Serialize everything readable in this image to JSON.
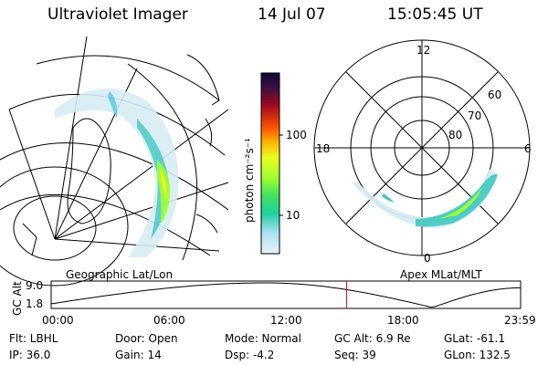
{
  "header": {
    "instrument": "Ultraviolet Imager",
    "date": "14 Jul 07",
    "time": "15:05:45 UT"
  },
  "left_panel": {
    "label": "Geographic Lat/Lon"
  },
  "right_panel": {
    "label": "Apex MLat/MLT",
    "mlt_labels": {
      "top": "12",
      "left": "18",
      "right": "6",
      "bottom": "0"
    },
    "lat_labels": [
      "60",
      "70",
      "80"
    ]
  },
  "colorbar": {
    "unit_label": "photon cm⁻²s⁻¹",
    "ticks": [
      "100",
      "10"
    ],
    "colors": [
      "#0a0a3a",
      "#3a1040",
      "#701038",
      "#a00820",
      "#d01010",
      "#ff5000",
      "#ff9a00",
      "#ffd000",
      "#e8ff20",
      "#a0ff30",
      "#40e060",
      "#20d0a0",
      "#40c8e0",
      "#a8e0f0",
      "#e8f4f8"
    ]
  },
  "timeline": {
    "axis_title": "GC Alt",
    "y_ticks": [
      "9.0",
      "1.8"
    ],
    "x_ticks": [
      "00:00",
      "06:00",
      "12:00",
      "18:00",
      "23:59"
    ],
    "current_time_hours": 15.1,
    "marker_color": "#e00000"
  },
  "info": {
    "flt": "Flt: LBHL",
    "ip": "IP: 36.0",
    "door": "Door: Open",
    "gain": "Gain: 14",
    "mode": "Mode: Normal",
    "dsp": "Dsp:    -4.2",
    "gcalt": "GC Alt: 6.9 Re",
    "seq": "Seq: 39",
    "glat": "GLat: -61.1",
    "glon": "GLon: 132.5"
  }
}
